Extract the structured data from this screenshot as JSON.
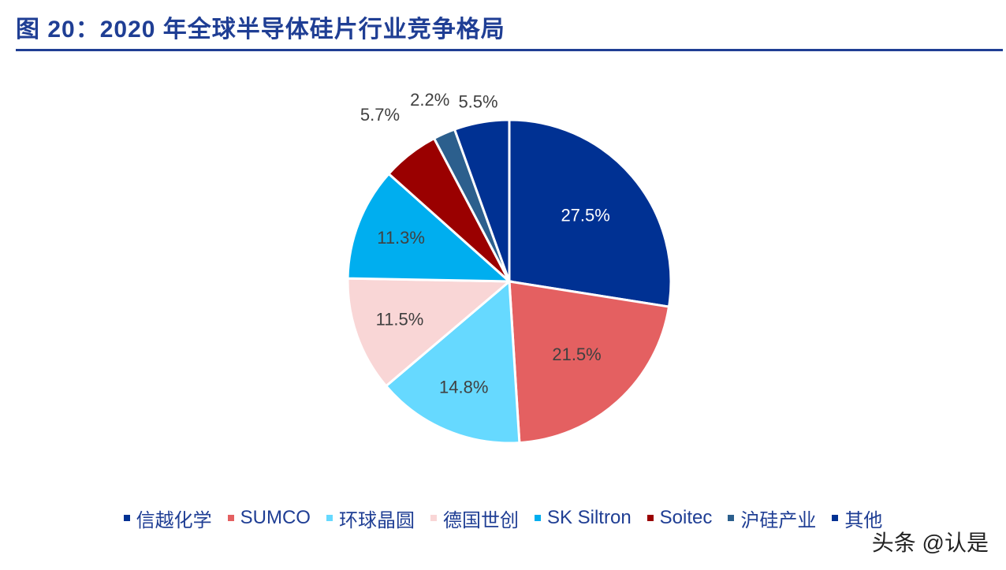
{
  "title": "图 20：2020 年全球半导体硅片行业竞争格局",
  "watermark": "头条 @认是",
  "colors": {
    "title": "#1F3E94",
    "rule": "#1F3E94"
  },
  "chart_data": {
    "type": "pie",
    "categories": [
      "信越化学",
      "SUMCO",
      "环球晶圆",
      "德国世创",
      "SK Siltron",
      "Soitec",
      "沪硅产业",
      "其他"
    ],
    "values": [
      27.5,
      21.5,
      14.8,
      11.5,
      11.3,
      5.7,
      2.2,
      5.5
    ],
    "labels": [
      "27.5%",
      "21.5%",
      "14.8%",
      "11.5%",
      "11.3%",
      "5.7%",
      "2.2%",
      "5.5%"
    ],
    "colors": [
      "#003193",
      "#E46061",
      "#66D9FF",
      "#F9D6D6",
      "#00AEEF",
      "#9A0000",
      "#2C5F8D",
      "#003193"
    ],
    "label_colors": [
      "#FFFFFF",
      "#404040",
      "#404040",
      "#404040",
      "#404040",
      "#404040",
      "#404040",
      "#404040"
    ],
    "legend_position": "bottom"
  }
}
